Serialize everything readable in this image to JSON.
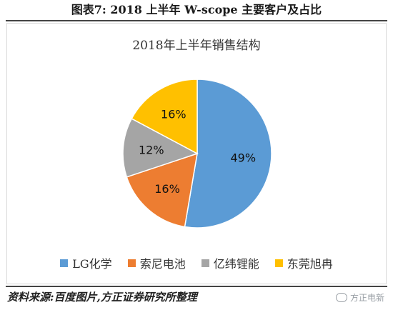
{
  "figure": {
    "title": "图表7:   2018 上半年 W-scope 主要客户及占比",
    "source": "资料来源:百度图片,方正证券研究所整理",
    "watermark": "方正电新"
  },
  "chart_data": {
    "type": "pie",
    "title": "2018年上半年销售结构",
    "categories": [
      "LG化学",
      "索尼电池",
      "亿纬锂能",
      "东莞旭冉"
    ],
    "values": [
      49,
      16,
      12,
      16
    ],
    "labels": [
      "49%",
      "16%",
      "12%",
      "16%"
    ],
    "colors": [
      "#5b9bd5",
      "#ed7d31",
      "#a5a5a5",
      "#ffc000"
    ],
    "legend_position": "bottom"
  }
}
